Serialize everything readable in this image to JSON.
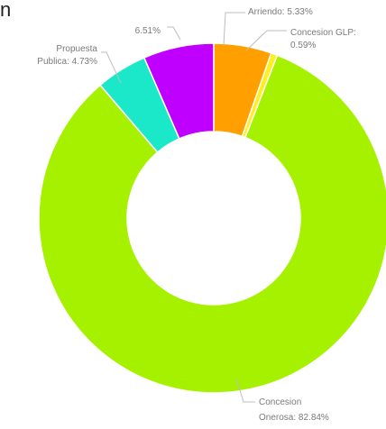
{
  "chart_data": {
    "type": "pie",
    "donut": true,
    "title": "",
    "partial_header_glyph": "n",
    "slices": [
      {
        "label": "Arriendo",
        "value": 5.33,
        "display": "Arriendo: 5.33%",
        "color": "#ff9f00"
      },
      {
        "label": "Concesion GLP",
        "value": 0.59,
        "display": "Concesion GLP: 0.59%",
        "color": "#ffef1e"
      },
      {
        "label": "Concesion Onerosa",
        "value": 82.84,
        "display": "Concesion Onerosa: 82.84%",
        "color": "#a6f100"
      },
      {
        "label": "Propuesta Publica",
        "value": 4.73,
        "display": "Propuesta Publica: 4.73%",
        "color": "#1ae8c8"
      },
      {
        "label": "",
        "value": 6.51,
        "display": "6.51%",
        "color": "#c000ff"
      }
    ]
  }
}
